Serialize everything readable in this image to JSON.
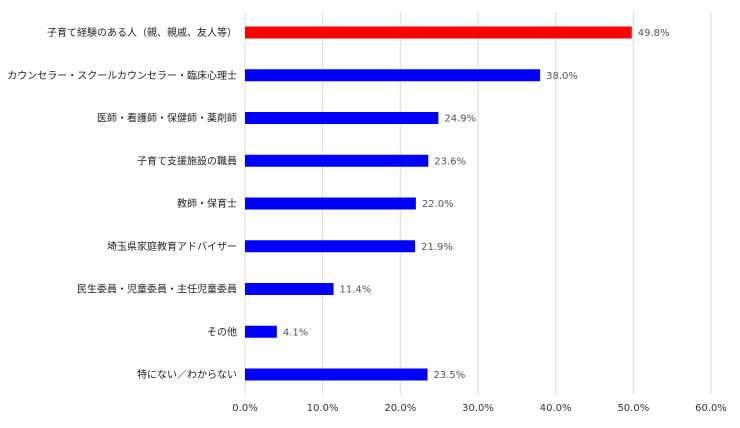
{
  "chart_data": {
    "type": "bar",
    "orientation": "horizontal",
    "title": "",
    "xlabel": "",
    "ylabel": "",
    "categories": [
      "子育て経験のある人（親、親戚、友人等）",
      "カウンセラー・スクールカウンセラー・臨床心理士",
      "医師・看護師・保健師・薬剤師",
      "子育て支援施設の職員",
      "教師・保育士",
      "埼玉県家庭教育アドバイザー",
      "民生委員・児童委員・主任児童委員",
      "その他",
      "特にない／わからない"
    ],
    "values": [
      49.8,
      38.0,
      24.9,
      23.6,
      22.0,
      21.9,
      11.4,
      4.1,
      23.5
    ],
    "data_labels": [
      "49.8%",
      "38.0%",
      "24.9%",
      "23.6%",
      "22.0%",
      "21.9%",
      "11.4%",
      "4.1%",
      "23.5%"
    ],
    "xlim": [
      0,
      60
    ],
    "x_ticks": [
      0,
      10,
      20,
      30,
      40,
      50,
      60
    ],
    "x_tick_labels": [
      "0.0%",
      "10.0%",
      "20.0%",
      "30.0%",
      "40.0%",
      "50.0%",
      "60.0%"
    ],
    "grid": true,
    "legend": "none",
    "bar_colors": [
      "#ff0000",
      "#0000ff",
      "#0000ff",
      "#0000ff",
      "#0000ff",
      "#0000ff",
      "#0000ff",
      "#0000ff",
      "#0000ff"
    ]
  }
}
